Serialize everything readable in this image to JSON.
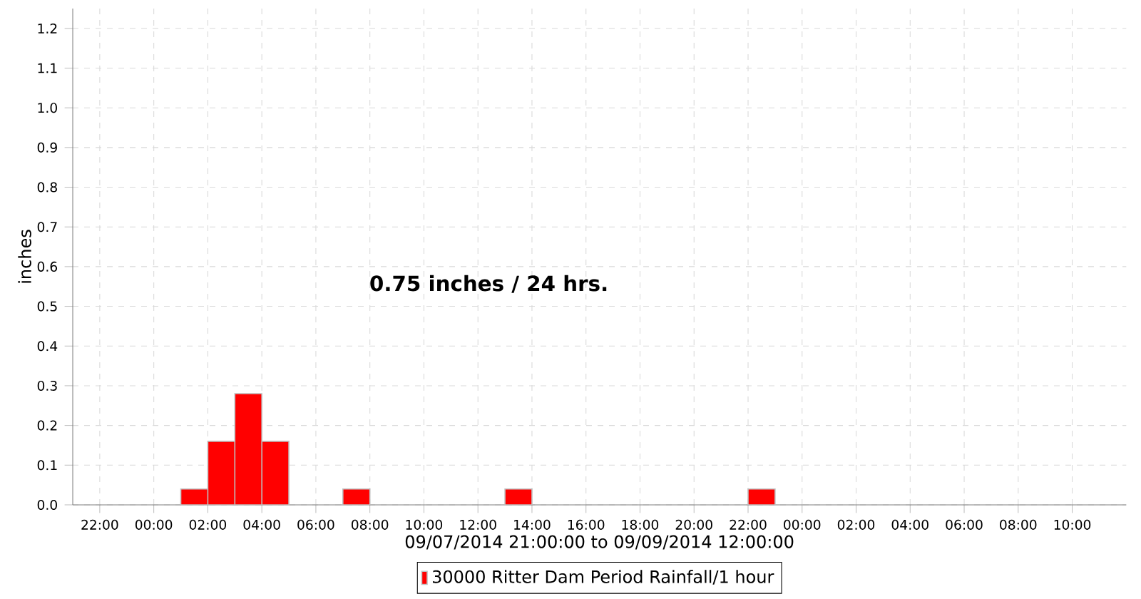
{
  "chart_data": {
    "type": "bar",
    "xlabel": "09/07/2014 21:00:00 to 09/09/2014 12:00:00",
    "ylabel": "inches",
    "annotations": [
      "0.75 inches / 24 hrs."
    ],
    "x": [
      "2014-09-08T01:30",
      "2014-09-08T02:30",
      "2014-09-08T03:30",
      "2014-09-08T04:30",
      "2014-09-08T07:30",
      "2014-09-08T13:30",
      "2014-09-08T22:30"
    ],
    "series": [
      {
        "name": "30000 Ritter Dam Period Rainfall/1 hour",
        "color": "#ff0000",
        "values": [
          0.04,
          0.16,
          0.28,
          0.16,
          0.04,
          0.04,
          0.04
        ]
      }
    ],
    "xlim": [
      "2014-09-07T21:00",
      "2014-09-09T12:00"
    ],
    "xticks": [
      {
        "value": "2014-09-07T22:00",
        "label": "22:00"
      },
      {
        "value": "2014-09-08T00:00",
        "label": "00:00"
      },
      {
        "value": "2014-09-08T02:00",
        "label": "02:00"
      },
      {
        "value": "2014-09-08T04:00",
        "label": "04:00"
      },
      {
        "value": "2014-09-08T06:00",
        "label": "06:00"
      },
      {
        "value": "2014-09-08T08:00",
        "label": "08:00"
      },
      {
        "value": "2014-09-08T10:00",
        "label": "10:00"
      },
      {
        "value": "2014-09-08T12:00",
        "label": "12:00"
      },
      {
        "value": "2014-09-08T14:00",
        "label": "14:00"
      },
      {
        "value": "2014-09-08T16:00",
        "label": "16:00"
      },
      {
        "value": "2014-09-08T18:00",
        "label": "18:00"
      },
      {
        "value": "2014-09-08T20:00",
        "label": "20:00"
      },
      {
        "value": "2014-09-08T22:00",
        "label": "22:00"
      },
      {
        "value": "2014-09-09T00:00",
        "label": "00:00"
      },
      {
        "value": "2014-09-09T02:00",
        "label": "02:00"
      },
      {
        "value": "2014-09-09T04:00",
        "label": "04:00"
      },
      {
        "value": "2014-09-09T06:00",
        "label": "06:00"
      },
      {
        "value": "2014-09-09T08:00",
        "label": "08:00"
      },
      {
        "value": "2014-09-09T10:00",
        "label": "10:00"
      }
    ],
    "ylim": [
      0,
      1.25
    ],
    "yticks": [
      {
        "value": 0,
        "label": "0.0"
      },
      0.1,
      0.2,
      0.3,
      0.4,
      0.5,
      0.6,
      0.7,
      0.8,
      0.9,
      {
        "value": 1,
        "label": "1.0"
      },
      1.1,
      1.2
    ],
    "grid": true,
    "legend": "bottom"
  }
}
